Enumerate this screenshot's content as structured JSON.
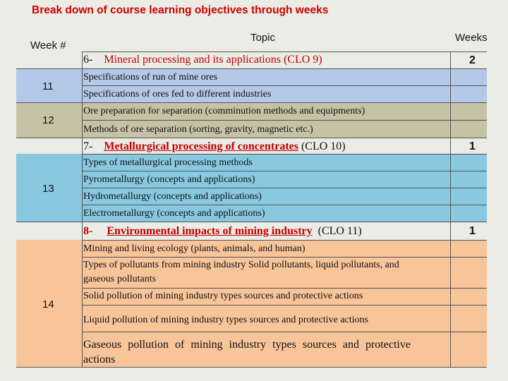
{
  "title": "Break down of course learning objectives through weeks",
  "headers": {
    "week": "Week #",
    "topic": "Topic",
    "weeks": "Weeks"
  },
  "topics": [
    {
      "num": "6-",
      "name": "Mineral processing and its applications",
      "clo": "(CLO 9)",
      "weeks": "2"
    },
    {
      "num": "7-",
      "name": "Metallurgical processing of concentrates",
      "clo": "(CLO 10)",
      "weeks": "1"
    },
    {
      "num": "8-",
      "name": "Environmental impacts of mining industry",
      "clo": "(CLO 11)",
      "weeks": "1"
    }
  ],
  "week_labels": [
    "11",
    "12",
    "13",
    "14"
  ],
  "rows": [
    "Specifications of run of mine ores",
    "Specifications of ores fed to different industries",
    "Ore preparation for separation (comminution methods and equipments)",
    "Methods of ore separation (sorting, gravity, magnetic etc.)",
    "Types of metallurgical processing methods",
    "Pyrometallurgy (concepts and applications)",
    "Hydrometallurgy (concepts and applications)",
    "Electrometallurgy (concepts and applications)",
    "Mining and living ecology (plants, animals, and human)",
    "Types of pollutants from mining industry Solid pollutants, liquid pollutants, and",
    "gaseous pollutants",
    "Solid pollution of mining industry types sources and protective actions",
    "Liquid pollution of mining industry types sources and protective actions",
    "Gaseous pollution of mining industry types sources and protective",
    "actions"
  ],
  "colors": {
    "blue": "#b4c8e8",
    "khaki": "#c6c2a6",
    "cyan": "#88c8e0",
    "peach": "#f8c49a",
    "title": "#cc0000"
  }
}
